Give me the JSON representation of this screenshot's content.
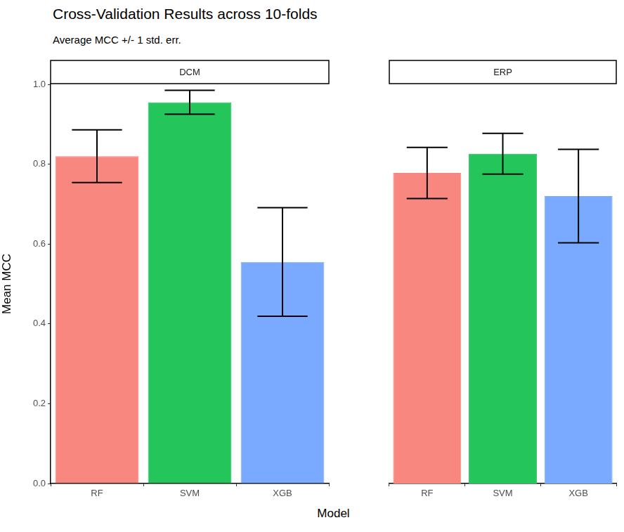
{
  "chart_data": {
    "type": "bar",
    "title": "Cross-Validation Results across 10-folds",
    "subtitle": "Average MCC +/- 1 std. err.",
    "x_label": "Model",
    "y_label": "Mean MCC",
    "ylim": [
      0,
      1
    ],
    "yticks": [
      {
        "value": 0,
        "label": "0.0"
      },
      0.2,
      0.4,
      0.6,
      0.8,
      {
        "value": 1,
        "label": "1.0"
      }
    ],
    "grid": false,
    "colors": [
      "#f8877f",
      "#24c55a",
      "#7aaaff"
    ],
    "facets": [
      {
        "name": "DCM",
        "categories": [
          "RF",
          "SVM",
          "XGB"
        ],
        "values": [
          0.82,
          0.955,
          0.555
        ],
        "std_err": [
          0.066,
          0.03,
          0.136
        ]
      },
      {
        "name": "ERP",
        "categories": [
          "RF",
          "SVM",
          "XGB"
        ],
        "values": [
          0.778,
          0.826,
          0.72
        ],
        "std_err": [
          0.064,
          0.051,
          0.117
        ]
      }
    ]
  }
}
